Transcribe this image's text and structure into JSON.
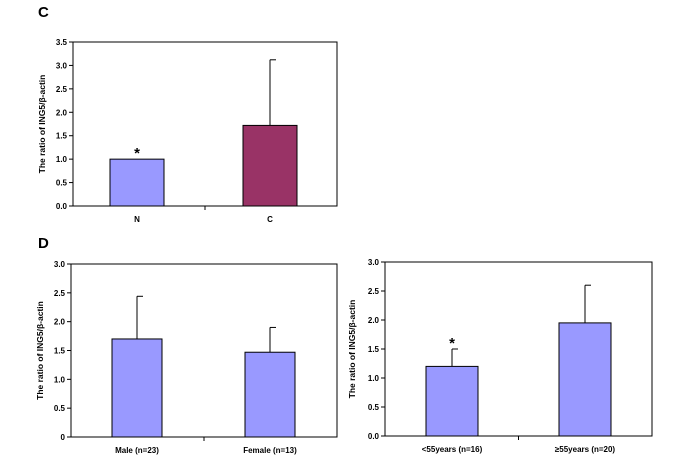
{
  "panels": [
    {
      "letter": "C"
    },
    {
      "letter": "D"
    }
  ],
  "chart_data": [
    {
      "type": "bar",
      "panel": "C",
      "categories": [
        "N",
        "C"
      ],
      "values": [
        1.0,
        1.72
      ],
      "error_upper": [
        1.0,
        3.12
      ],
      "bar_colors": [
        "#9999ff",
        "#993366"
      ],
      "significance": [
        "*",
        ""
      ],
      "ylabel": "The ratio of ING5/β-actin",
      "ylim": [
        0,
        3.5
      ],
      "yticks": [
        "0.0",
        "0.5",
        "1.0",
        "1.5",
        "2.0",
        "2.5",
        "3.0",
        "3.5"
      ],
      "grid": false
    },
    {
      "type": "bar",
      "panel": "D",
      "categories": [
        "Male (n=23)",
        "Female (n=13)"
      ],
      "values": [
        1.7,
        1.47
      ],
      "error_upper": [
        2.44,
        1.9
      ],
      "bar_colors": [
        "#9999ff",
        "#9999ff"
      ],
      "significance": [
        "",
        ""
      ],
      "ylabel": "The ratio of ING5/β-actin",
      "ylim": [
        0,
        3.0
      ],
      "yticks": [
        "0",
        "0.5",
        "1.0",
        "1.5",
        "2.0",
        "2.5",
        "3.0"
      ],
      "grid": false
    },
    {
      "type": "bar",
      "panel": "D",
      "categories": [
        "<55years (n=16)",
        "≥55years (n=20)"
      ],
      "values": [
        1.2,
        1.95
      ],
      "error_upper": [
        1.5,
        2.6
      ],
      "bar_colors": [
        "#9999ff",
        "#9999ff"
      ],
      "significance": [
        "*",
        ""
      ],
      "ylabel": "The ratio of ING5/β-actin",
      "ylim": [
        0,
        3.0
      ],
      "yticks": [
        "0.0",
        "0.5",
        "1.0",
        "1.5",
        "2.0",
        "2.5",
        "3.0"
      ],
      "grid": false
    }
  ]
}
